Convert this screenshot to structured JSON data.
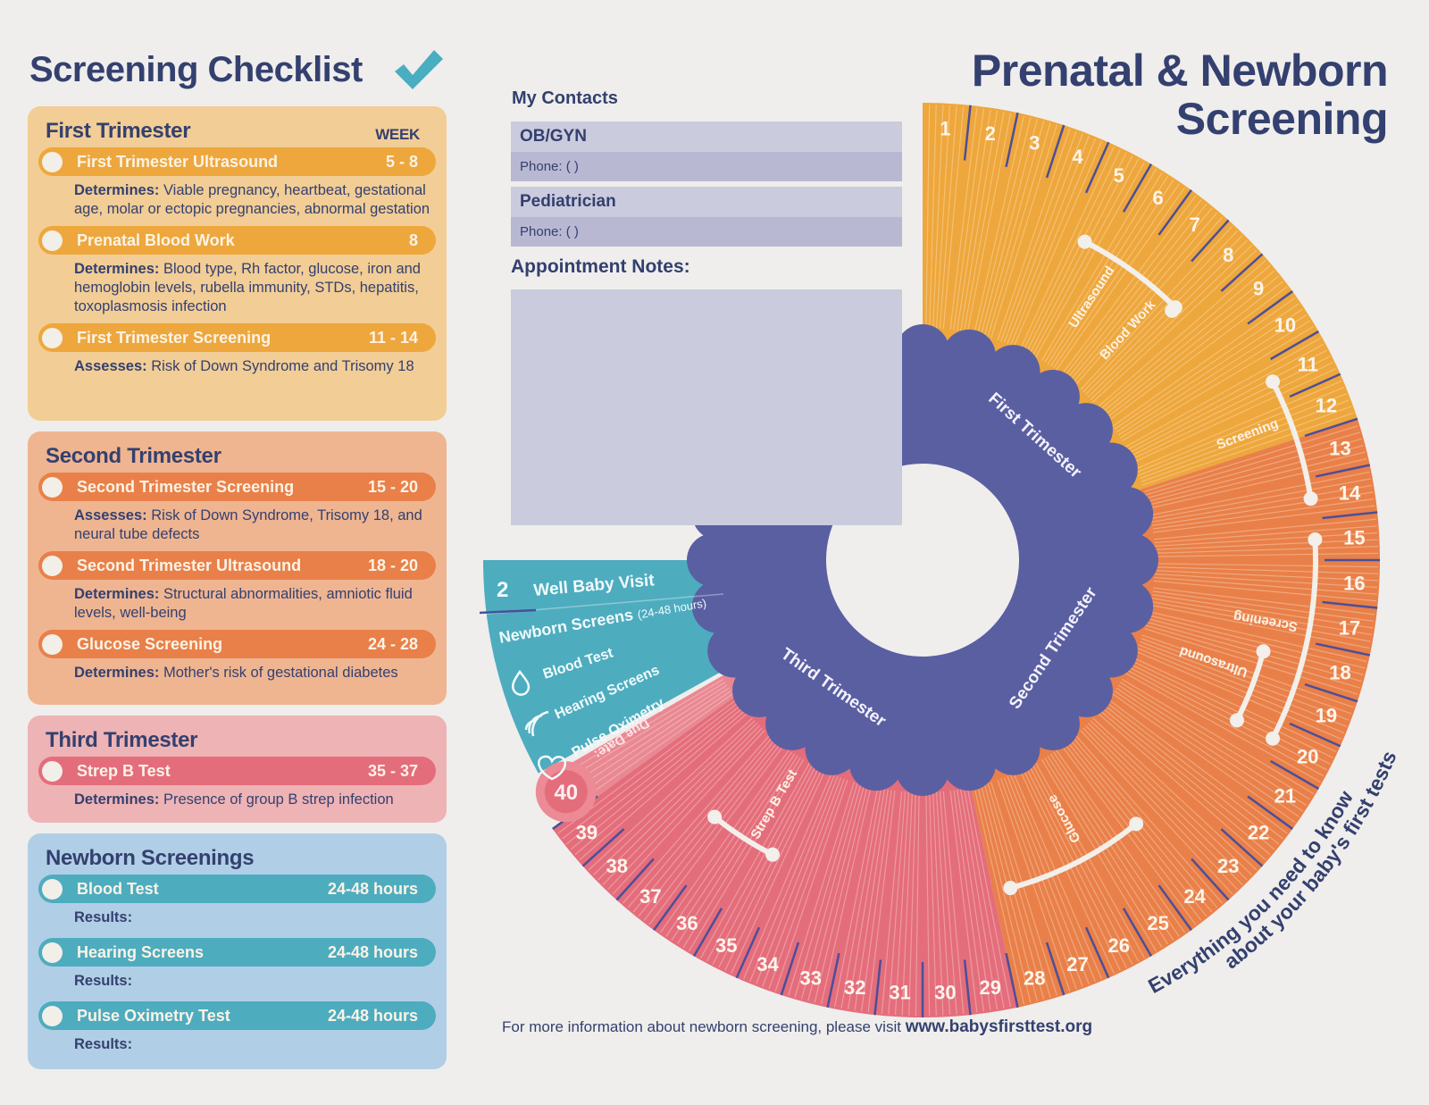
{
  "checklist": {
    "title": "Screening Checklist",
    "check_icon": "checkmark-icon",
    "week_header": "WEEK",
    "sections": [
      {
        "title": "First Trimester",
        "color": "#eea73c",
        "items": [
          {
            "name": "First Trimester Ultrasound",
            "weeks": "5 - 8",
            "label": "Determines:",
            "text": "Viable pregnancy, heartbeat, gestational age, molar or ectopic pregnancies, abnormal gestation"
          },
          {
            "name": "Prenatal Blood Work",
            "weeks": "8",
            "label": "Determines:",
            "text": "Blood type, Rh factor, glucose, iron and hemoglobin levels, rubella immunity, STDs, hepatitis, toxoplasmosis infection"
          },
          {
            "name": "First Trimester Screening",
            "weeks": "11 - 14",
            "label": "Assesses:",
            "text": "Risk of Down Syndrome and Trisomy 18"
          }
        ]
      },
      {
        "title": "Second Trimester",
        "color": "#e98049",
        "items": [
          {
            "name": "Second Trimester Screening",
            "weeks": "15 - 20",
            "label": "Assesses:",
            "text": "Risk of Down Syndrome, Trisomy 18, and neural tube defects"
          },
          {
            "name": "Second Trimester Ultrasound",
            "weeks": "18 - 20",
            "label": "Determines:",
            "text": "Structural abnormalities, amniotic fluid levels, well-being"
          },
          {
            "name": "Glucose Screening",
            "weeks": "24 - 28",
            "label": "Determines:",
            "text": "Mother's risk of gestational diabetes"
          }
        ]
      },
      {
        "title": "Third Trimester",
        "color": "#e46d7c",
        "items": [
          {
            "name": "Strep B Test",
            "weeks": "35 - 37",
            "label": "Determines:",
            "text": "Presence of group B strep infection"
          }
        ]
      },
      {
        "title": "Newborn Screenings",
        "color": "#4eacbf",
        "items": [
          {
            "name": "Blood Test",
            "weeks": "24-48 hours",
            "label": "Results:",
            "text": ""
          },
          {
            "name": "Hearing Screens",
            "weeks": "24-48 hours",
            "label": "Results:",
            "text": ""
          },
          {
            "name": "Pulse Oximetry Test",
            "weeks": "24-48 hours",
            "label": "Results:",
            "text": ""
          }
        ]
      }
    ]
  },
  "contacts": {
    "title": "My Contacts",
    "entries": [
      {
        "name": "OB/GYN",
        "phone_label": "Phone: (            )"
      },
      {
        "name": "Pediatrician",
        "phone_label": "Phone: (            )"
      }
    ],
    "notes_title": "Appointment Notes:",
    "notes_value": ""
  },
  "header": {
    "title_line1": "Prenatal & Newborn",
    "title_line2": "Screening"
  },
  "wheel": {
    "weeks": [
      "1",
      "2",
      "3",
      "4",
      "5",
      "6",
      "7",
      "8",
      "9",
      "10",
      "11",
      "12",
      "13",
      "14",
      "15",
      "16",
      "17",
      "18",
      "19",
      "20",
      "21",
      "22",
      "23",
      "24",
      "25",
      "26",
      "27",
      "28",
      "29",
      "30",
      "31",
      "32",
      "33",
      "34",
      "35",
      "36",
      "37",
      "38",
      "39",
      "40"
    ],
    "trimesters": [
      "First Trimester",
      "Second Trimester",
      "Third Trimester"
    ],
    "colors": {
      "first": "#eea73c",
      "second": "#e98049",
      "third": "#e46d7c",
      "newborn": "#4eacbf",
      "center": "#5a5fa2",
      "tick": "#4a4f9a"
    },
    "arcs": [
      {
        "label": "Ultrasound",
        "from": 5,
        "to": 8
      },
      {
        "label": "Blood Work",
        "from": 8,
        "to": 8
      },
      {
        "label": "Screening",
        "from": 11,
        "to": 14
      },
      {
        "label": "Screening",
        "from": 15,
        "to": 20
      },
      {
        "label": "Ultrasound",
        "from": 18,
        "to": 20
      },
      {
        "label": "Glucose",
        "from": 24,
        "to": 28
      },
      {
        "label": "Strep B Test",
        "from": 35,
        "to": 37
      }
    ],
    "due_date_label": "Due Date:",
    "newborn": {
      "well_baby_number": "2",
      "well_baby_label": "Well Baby Visit",
      "screens_title": "Newborn Screens",
      "screens_hours": "(24-48 hours)",
      "items": [
        {
          "label": "Blood Test",
          "icon": "drop-icon"
        },
        {
          "label": "Hearing Screens",
          "icon": "sound-waves-icon"
        },
        {
          "label": "Pulse Oximetry",
          "icon": "heart-icon"
        }
      ]
    },
    "tagline_line1": "Everything you need to know",
    "tagline_line2": "about your baby's first tests"
  },
  "footer": {
    "text": "For more information about newborn screening, please visit",
    "link": "www.babysfirsttest.org"
  }
}
